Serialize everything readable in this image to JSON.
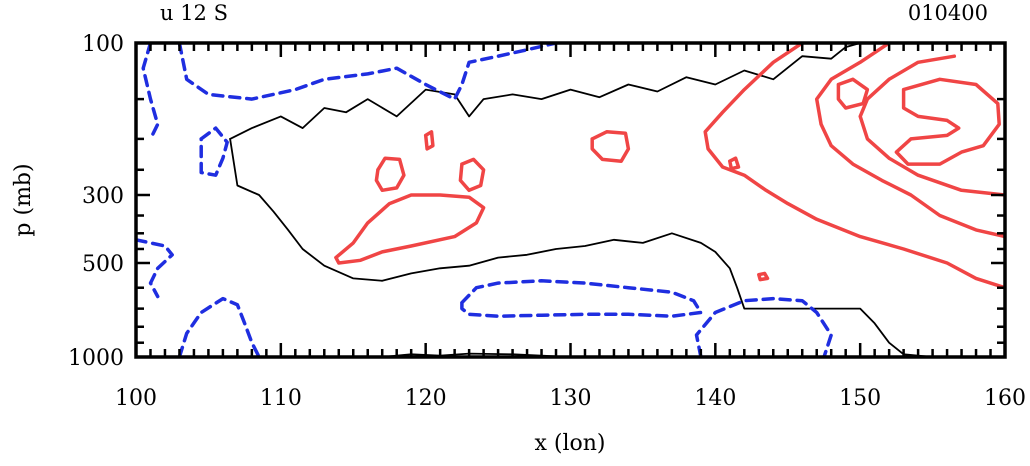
{
  "chart_data": {
    "type": "contour",
    "title_left": "u 12 S",
    "title_right": "010400",
    "xlabel": "x (lon)",
    "ylabel": "p (mb)",
    "xlim": [
      100,
      160
    ],
    "x_ticks": [
      "100",
      "110",
      "120",
      "130",
      "140",
      "150",
      "160"
    ],
    "x_tick_values": [
      100,
      110,
      120,
      130,
      140,
      150,
      160
    ],
    "y_ticks": [
      "100",
      "300",
      "500",
      "1000"
    ],
    "y_tick_values": [
      100,
      300,
      500,
      1000
    ],
    "ylim": [
      100,
      1000
    ],
    "y_scale": "log-pressure",
    "colors": {
      "positive": "#f04545",
      "negative": "#1f2ee0",
      "zero": "#000000"
    },
    "contours": [
      {
        "kind": "zero",
        "points": [
          [
            106.5,
            200
          ],
          [
            108,
            185
          ],
          [
            110,
            170
          ],
          [
            111.5,
            185
          ],
          [
            113,
            160
          ],
          [
            114.5,
            165
          ],
          [
            116,
            150
          ],
          [
            118,
            170
          ],
          [
            120,
            140
          ],
          [
            122,
            145
          ],
          [
            123,
            170
          ],
          [
            124,
            150
          ],
          [
            126,
            145
          ],
          [
            128,
            150
          ],
          [
            130,
            140
          ],
          [
            132,
            148
          ],
          [
            134,
            135
          ],
          [
            136,
            142
          ],
          [
            138,
            128
          ],
          [
            140,
            135
          ],
          [
            142,
            122
          ],
          [
            144,
            130
          ],
          [
            146,
            110
          ],
          [
            148,
            112
          ],
          [
            149,
            103
          ],
          [
            150,
            100
          ]
        ]
      },
      {
        "kind": "zero",
        "points": [
          [
            106.5,
            200
          ],
          [
            107,
            280
          ],
          [
            108.5,
            300
          ],
          [
            109.5,
            340
          ],
          [
            110.5,
            390
          ],
          [
            111.5,
            450
          ],
          [
            113,
            510
          ],
          [
            115,
            560
          ],
          [
            117,
            570
          ],
          [
            119,
            540
          ],
          [
            121,
            520
          ],
          [
            123,
            510
          ],
          [
            125,
            480
          ],
          [
            127,
            470
          ],
          [
            129,
            450
          ],
          [
            131,
            440
          ],
          [
            133,
            420
          ],
          [
            135,
            430
          ],
          [
            137,
            400
          ],
          [
            139,
            430
          ],
          [
            140,
            460
          ],
          [
            141,
            520
          ],
          [
            141.5,
            600
          ],
          [
            142,
            700
          ],
          [
            145,
            700
          ],
          [
            148,
            700
          ],
          [
            150,
            700
          ],
          [
            151,
            780
          ],
          [
            152,
            900
          ],
          [
            153,
            980
          ],
          [
            155,
            1000
          ]
        ]
      },
      {
        "kind": "zero",
        "points": [
          [
            117,
            1000
          ],
          [
            119,
            980
          ],
          [
            121,
            990
          ],
          [
            123,
            975
          ],
          [
            126,
            980
          ],
          [
            128,
            990
          ],
          [
            130,
            1000
          ]
        ]
      },
      {
        "kind": "positive",
        "points": [
          [
            113.8,
            480
          ],
          [
            115,
            430
          ],
          [
            116,
            370
          ],
          [
            117.5,
            320
          ],
          [
            119,
            300
          ],
          [
            121,
            300
          ],
          [
            123,
            305
          ],
          [
            124,
            330
          ],
          [
            123.5,
            370
          ],
          [
            122,
            410
          ],
          [
            119,
            440
          ],
          [
            117,
            460
          ],
          [
            115.5,
            490
          ],
          [
            114,
            500
          ],
          [
            113.8,
            480
          ]
        ]
      },
      {
        "kind": "positive",
        "points": [
          [
            116.7,
            250
          ],
          [
            117.2,
            230
          ],
          [
            118.2,
            232
          ],
          [
            118.5,
            260
          ],
          [
            118,
            285
          ],
          [
            117,
            290
          ],
          [
            116.6,
            270
          ],
          [
            116.7,
            250
          ]
        ]
      },
      {
        "kind": "positive",
        "points": [
          [
            122.5,
            240
          ],
          [
            123.3,
            232
          ],
          [
            124,
            250
          ],
          [
            123.8,
            280
          ],
          [
            123,
            290
          ],
          [
            122.4,
            270
          ],
          [
            122.5,
            240
          ]
        ]
      },
      {
        "kind": "positive",
        "points": [
          [
            120,
            195
          ],
          [
            120.4,
            190
          ],
          [
            120.5,
            210
          ],
          [
            120.1,
            215
          ],
          [
            120,
            195
          ]
        ]
      },
      {
        "kind": "positive",
        "points": [
          [
            131.5,
            200
          ],
          [
            132.5,
            190
          ],
          [
            133.8,
            192
          ],
          [
            134,
            215
          ],
          [
            133.5,
            235
          ],
          [
            132.2,
            232
          ],
          [
            131.5,
            215
          ],
          [
            131.5,
            200
          ]
        ]
      },
      {
        "kind": "positive",
        "points": [
          [
            146,
            100
          ],
          [
            144,
            115
          ],
          [
            142,
            140
          ],
          [
            140.5,
            165
          ],
          [
            139.3,
            190
          ],
          [
            139.5,
            215
          ],
          [
            140.5,
            245
          ],
          [
            142,
            260
          ],
          [
            143.5,
            290
          ],
          [
            145,
            320
          ],
          [
            147,
            360
          ],
          [
            150,
            410
          ],
          [
            153,
            450
          ],
          [
            156,
            500
          ],
          [
            158,
            560
          ],
          [
            160,
            600
          ]
        ]
      },
      {
        "kind": "positive",
        "points": [
          [
            152,
            100
          ],
          [
            150,
            115
          ],
          [
            148,
            130
          ],
          [
            147,
            150
          ],
          [
            147.3,
            180
          ],
          [
            148,
            210
          ],
          [
            149.5,
            240
          ],
          [
            151.5,
            270
          ],
          [
            153.5,
            300
          ],
          [
            155.5,
            350
          ],
          [
            158,
            390
          ],
          [
            160,
            410
          ]
        ]
      },
      {
        "kind": "positive",
        "points": [
          [
            156.5,
            110
          ],
          [
            154,
            115
          ],
          [
            152,
            130
          ],
          [
            150.5,
            150
          ],
          [
            150,
            170
          ],
          [
            150.5,
            200
          ],
          [
            152,
            230
          ],
          [
            154,
            260
          ],
          [
            157,
            290
          ],
          [
            160,
            300
          ]
        ]
      },
      {
        "kind": "positive",
        "points": [
          [
            153,
            140
          ],
          [
            155.5,
            130
          ],
          [
            158,
            135
          ],
          [
            159.5,
            155
          ],
          [
            159.6,
            180
          ],
          [
            158.5,
            210
          ],
          [
            157,
            220
          ],
          [
            155.5,
            240
          ],
          [
            153.3,
            240
          ],
          [
            152.5,
            220
          ],
          [
            153.5,
            200
          ],
          [
            156,
            195
          ],
          [
            156.8,
            185
          ],
          [
            156,
            175
          ],
          [
            154,
            170
          ],
          [
            153,
            160
          ],
          [
            153,
            140
          ]
        ]
      },
      {
        "kind": "positive",
        "points": [
          [
            148.5,
            135
          ],
          [
            149.5,
            130
          ],
          [
            150.5,
            140
          ],
          [
            150.2,
            155
          ],
          [
            149,
            160
          ],
          [
            148.5,
            150
          ],
          [
            148.5,
            135
          ]
        ]
      },
      {
        "kind": "positive",
        "points": [
          [
            141,
            235
          ],
          [
            141.4,
            230
          ],
          [
            141.6,
            245
          ],
          [
            141.1,
            248
          ],
          [
            141,
            235
          ]
        ]
      },
      {
        "kind": "positive",
        "points": [
          [
            143,
            545
          ],
          [
            143.4,
            540
          ],
          [
            143.6,
            560
          ],
          [
            143.1,
            565
          ],
          [
            143,
            545
          ]
        ]
      },
      {
        "kind": "negative",
        "points": [
          [
            101,
            100
          ],
          [
            100.5,
            120
          ],
          [
            101,
            150
          ],
          [
            101.5,
            180
          ],
          [
            101,
            200
          ]
        ]
      },
      {
        "kind": "negative",
        "points": [
          [
            103,
            100
          ],
          [
            103.5,
            130
          ],
          [
            105,
            145
          ],
          [
            108,
            150
          ],
          [
            111,
            140
          ],
          [
            113,
            130
          ],
          [
            116,
            125
          ],
          [
            118,
            120
          ],
          [
            120,
            135
          ],
          [
            122,
            150
          ],
          [
            122.5,
            135
          ],
          [
            123,
            115
          ],
          [
            125,
            110
          ],
          [
            127,
            105
          ],
          [
            129,
            100
          ]
        ]
      },
      {
        "kind": "negative",
        "points": [
          [
            104.5,
            200
          ],
          [
            105.5,
            185
          ],
          [
            106.3,
            205
          ],
          [
            106,
            230
          ],
          [
            105.5,
            260
          ],
          [
            104.5,
            255
          ],
          [
            104.5,
            230
          ],
          [
            104.5,
            200
          ]
        ]
      },
      {
        "kind": "negative",
        "points": [
          [
            100,
            420
          ],
          [
            101,
            430
          ],
          [
            102,
            440
          ],
          [
            102.5,
            470
          ],
          [
            101.5,
            520
          ],
          [
            101,
            580
          ],
          [
            101.5,
            640
          ]
        ]
      },
      {
        "kind": "negative",
        "points": [
          [
            103,
            1000
          ],
          [
            103.5,
            840
          ],
          [
            104.5,
            720
          ],
          [
            106,
            650
          ],
          [
            107,
            680
          ],
          [
            107.5,
            780
          ],
          [
            108,
            900
          ],
          [
            108.5,
            1000
          ]
        ]
      },
      {
        "kind": "negative",
        "points": [
          [
            122.5,
            670
          ],
          [
            123.5,
            600
          ],
          [
            125,
            580
          ],
          [
            128,
            570
          ],
          [
            131,
            580
          ],
          [
            134,
            600
          ],
          [
            137,
            620
          ],
          [
            138.5,
            660
          ],
          [
            139,
            720
          ],
          [
            137,
            740
          ],
          [
            134,
            730
          ],
          [
            131,
            730
          ],
          [
            128,
            735
          ],
          [
            125,
            740
          ],
          [
            123,
            730
          ],
          [
            122.5,
            700
          ],
          [
            122.5,
            670
          ]
        ]
      },
      {
        "kind": "negative",
        "points": [
          [
            139,
            1000
          ],
          [
            138.7,
            850
          ],
          [
            140,
            720
          ],
          [
            142,
            660
          ],
          [
            144,
            650
          ],
          [
            146,
            660
          ],
          [
            147,
            720
          ],
          [
            148,
            850
          ],
          [
            147.5,
            1000
          ]
        ]
      }
    ]
  }
}
